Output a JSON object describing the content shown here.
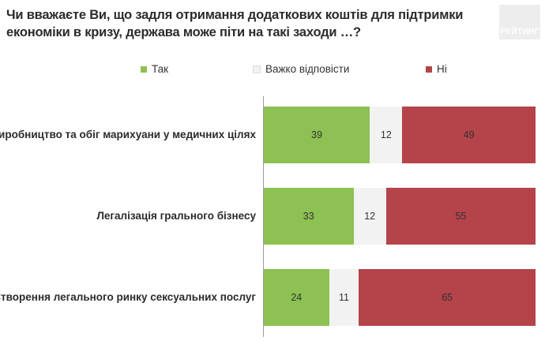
{
  "title": "Чи вважаєте Ви, що задля отримання додаткових коштів для підтримки економіки в кризу, держава може піти на такі заходи …?",
  "brand": "РЕЙТИНГ",
  "colors": {
    "yes": "#8dc153",
    "hard": "#f2f2f2",
    "no": "#b5434a",
    "text": "#333333"
  },
  "chart_data": {
    "type": "bar",
    "orientation": "horizontal",
    "stacked": true,
    "categories": [
      "Виробництво та обіг марихуани у медичних цілях",
      "Легалізація грального бізнесу",
      "Створення легального ринку сексуальних послуг"
    ],
    "series": [
      {
        "name": "Так",
        "color": "#8dc153",
        "values": [
          39,
          33,
          24
        ]
      },
      {
        "name": "Важко відповісти",
        "color": "#f2f2f2",
        "values": [
          12,
          12,
          11
        ]
      },
      {
        "name": "Ні",
        "color": "#b5434a",
        "values": [
          49,
          55,
          65
        ]
      }
    ],
    "xlim": [
      0,
      100
    ],
    "legend": "top",
    "grid": false
  }
}
